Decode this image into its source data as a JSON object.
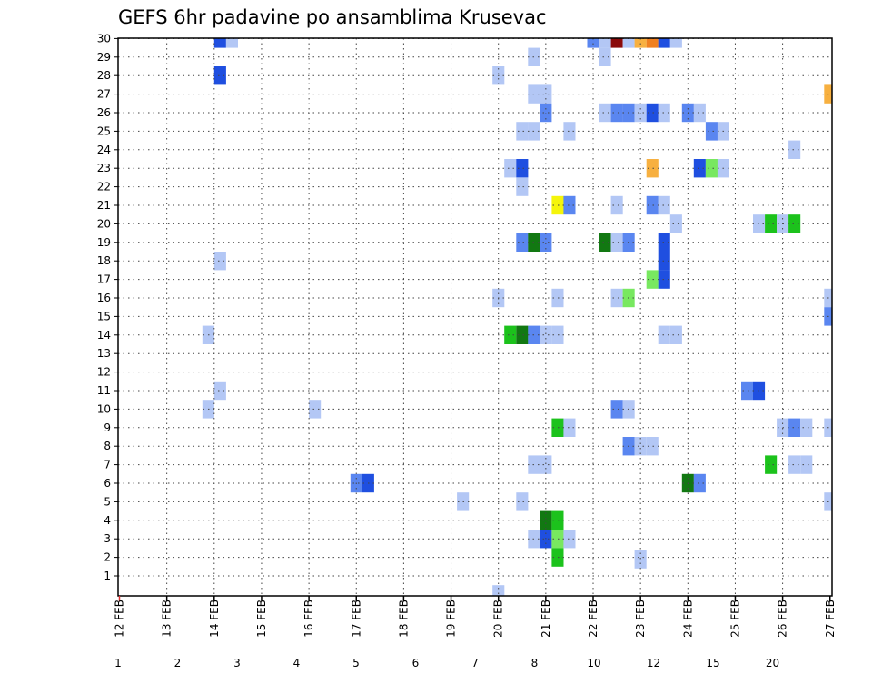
{
  "chart_data": {
    "type": "heatmap",
    "title": "GEFS 6hr padavine po ansamblima Krusevac",
    "x_tick_labels": [
      "12 FEB",
      "13 FEB",
      "14 FEB",
      "15 FEB",
      "16 FEB",
      "17 FEB",
      "18 FEB",
      "19 FEB",
      "20 FEB",
      "21 FEB",
      "22 FEB",
      "23 FEB",
      "24 FEB",
      "25 FEB",
      "26 FEB",
      "27 FEB"
    ],
    "y_tick_labels": [
      "1",
      "2",
      "3",
      "4",
      "5",
      "6",
      "7",
      "8",
      "9",
      "10",
      "11",
      "12",
      "13",
      "14",
      "15",
      "16",
      "17",
      "18",
      "19",
      "20",
      "21",
      "22",
      "23",
      "24",
      "25",
      "26",
      "27",
      "28",
      "29",
      "30"
    ],
    "xlim": [
      0,
      60
    ],
    "ylim": [
      0,
      30
    ],
    "x_unit": "6-hour step since 12 FEB 00Z",
    "grid": true,
    "legend_labels": [
      "1",
      "2",
      "3",
      "4",
      "5",
      "6",
      "7",
      "8",
      "10",
      "12",
      "15",
      "20"
    ],
    "legend_colors": [
      "#b3c7f5",
      "#5a86f0",
      "#1f4fe0",
      "#1a38d0",
      "#78e860",
      "#1cc21c",
      "#127812",
      "#f5f50a",
      "#f7b040",
      "#f08020",
      "#d42a2a",
      "#8a0a0a"
    ],
    "cells": [
      {
        "x": 8.5,
        "y": 30,
        "value": 3
      },
      {
        "x": 9.5,
        "y": 30,
        "value": 1
      },
      {
        "x": 40,
        "y": 30,
        "value": 2
      },
      {
        "x": 41,
        "y": 30,
        "value": 1
      },
      {
        "x": 42,
        "y": 30,
        "value": 20
      },
      {
        "x": 43,
        "y": 30,
        "value": 1
      },
      {
        "x": 44,
        "y": 30,
        "value": 10
      },
      {
        "x": 45,
        "y": 30,
        "value": 12
      },
      {
        "x": 46,
        "y": 30,
        "value": 3
      },
      {
        "x": 47,
        "y": 30,
        "value": 1
      },
      {
        "x": 35,
        "y": 29,
        "value": 1
      },
      {
        "x": 41,
        "y": 29,
        "value": 1
      },
      {
        "x": 8.5,
        "y": 28,
        "value": 3
      },
      {
        "x": 32,
        "y": 28,
        "value": 1
      },
      {
        "x": 35,
        "y": 27,
        "value": 1
      },
      {
        "x": 36,
        "y": 27,
        "value": 1
      },
      {
        "x": 60,
        "y": 27,
        "value": 10
      },
      {
        "x": 36,
        "y": 26,
        "value": 2
      },
      {
        "x": 41,
        "y": 26,
        "value": 1
      },
      {
        "x": 42,
        "y": 26,
        "value": 2
      },
      {
        "x": 43,
        "y": 26,
        "value": 2
      },
      {
        "x": 44,
        "y": 26,
        "value": 1
      },
      {
        "x": 45,
        "y": 26,
        "value": 3
      },
      {
        "x": 46,
        "y": 26,
        "value": 1
      },
      {
        "x": 48,
        "y": 26,
        "value": 2
      },
      {
        "x": 49,
        "y": 26,
        "value": 1
      },
      {
        "x": 34,
        "y": 25,
        "value": 1
      },
      {
        "x": 35,
        "y": 25,
        "value": 1
      },
      {
        "x": 38,
        "y": 25,
        "value": 1
      },
      {
        "x": 50,
        "y": 25,
        "value": 2
      },
      {
        "x": 51,
        "y": 25,
        "value": 1
      },
      {
        "x": 57,
        "y": 24,
        "value": 1
      },
      {
        "x": 33,
        "y": 23,
        "value": 1
      },
      {
        "x": 34,
        "y": 23,
        "value": 3
      },
      {
        "x": 45,
        "y": 23,
        "value": 10
      },
      {
        "x": 49,
        "y": 23,
        "value": 3
      },
      {
        "x": 50,
        "y": 23,
        "value": 5
      },
      {
        "x": 51,
        "y": 23,
        "value": 1
      },
      {
        "x": 34,
        "y": 22,
        "value": 1
      },
      {
        "x": 37,
        "y": 21,
        "value": 8
      },
      {
        "x": 38,
        "y": 21,
        "value": 2
      },
      {
        "x": 42,
        "y": 21,
        "value": 1
      },
      {
        "x": 45,
        "y": 21,
        "value": 2
      },
      {
        "x": 46,
        "y": 21,
        "value": 1
      },
      {
        "x": 47,
        "y": 20,
        "value": 1
      },
      {
        "x": 54,
        "y": 20,
        "value": 1
      },
      {
        "x": 55,
        "y": 20,
        "value": 6
      },
      {
        "x": 56,
        "y": 20,
        "value": 1
      },
      {
        "x": 57,
        "y": 20,
        "value": 6
      },
      {
        "x": 34,
        "y": 19,
        "value": 2
      },
      {
        "x": 35,
        "y": 19,
        "value": 7
      },
      {
        "x": 36,
        "y": 19,
        "value": 2
      },
      {
        "x": 41,
        "y": 19,
        "value": 7
      },
      {
        "x": 42,
        "y": 19,
        "value": 1
      },
      {
        "x": 43,
        "y": 19,
        "value": 2
      },
      {
        "x": 46,
        "y": 19,
        "value": 3
      },
      {
        "x": 8.5,
        "y": 18,
        "value": 1
      },
      {
        "x": 46,
        "y": 18,
        "value": 3
      },
      {
        "x": 45,
        "y": 17,
        "value": 5
      },
      {
        "x": 46,
        "y": 17,
        "value": 3
      },
      {
        "x": 32,
        "y": 16,
        "value": 1
      },
      {
        "x": 37,
        "y": 16,
        "value": 1
      },
      {
        "x": 42,
        "y": 16,
        "value": 1
      },
      {
        "x": 43,
        "y": 16,
        "value": 5
      },
      {
        "x": 60,
        "y": 16,
        "value": 1
      },
      {
        "x": 60,
        "y": 15,
        "value": 2
      },
      {
        "x": 7.5,
        "y": 14,
        "value": 1
      },
      {
        "x": 33,
        "y": 14,
        "value": 6
      },
      {
        "x": 34,
        "y": 14,
        "value": 7
      },
      {
        "x": 35,
        "y": 14,
        "value": 2
      },
      {
        "x": 36,
        "y": 14,
        "value": 1
      },
      {
        "x": 37,
        "y": 14,
        "value": 1
      },
      {
        "x": 46,
        "y": 14,
        "value": 1
      },
      {
        "x": 47,
        "y": 14,
        "value": 1
      },
      {
        "x": 8.5,
        "y": 11,
        "value": 1
      },
      {
        "x": 53,
        "y": 11,
        "value": 2
      },
      {
        "x": 54,
        "y": 11,
        "value": 3
      },
      {
        "x": 7.5,
        "y": 10,
        "value": 1
      },
      {
        "x": 16.5,
        "y": 10,
        "value": 1
      },
      {
        "x": 42,
        "y": 10,
        "value": 2
      },
      {
        "x": 43,
        "y": 10,
        "value": 1
      },
      {
        "x": 37,
        "y": 9,
        "value": 6
      },
      {
        "x": 38,
        "y": 9,
        "value": 1
      },
      {
        "x": 56,
        "y": 9,
        "value": 1
      },
      {
        "x": 57,
        "y": 9,
        "value": 2
      },
      {
        "x": 58,
        "y": 9,
        "value": 1
      },
      {
        "x": 60,
        "y": 9,
        "value": 1
      },
      {
        "x": 43,
        "y": 8,
        "value": 2
      },
      {
        "x": 44,
        "y": 8,
        "value": 1
      },
      {
        "x": 45,
        "y": 8,
        "value": 1
      },
      {
        "x": 35,
        "y": 7,
        "value": 1
      },
      {
        "x": 36,
        "y": 7,
        "value": 1
      },
      {
        "x": 55,
        "y": 7,
        "value": 6
      },
      {
        "x": 57,
        "y": 7,
        "value": 1
      },
      {
        "x": 58,
        "y": 7,
        "value": 1
      },
      {
        "x": 20,
        "y": 6,
        "value": 2
      },
      {
        "x": 21,
        "y": 6,
        "value": 3
      },
      {
        "x": 48,
        "y": 6,
        "value": 7
      },
      {
        "x": 49,
        "y": 6,
        "value": 2
      },
      {
        "x": 29,
        "y": 5,
        "value": 1
      },
      {
        "x": 34,
        "y": 5,
        "value": 1
      },
      {
        "x": 60,
        "y": 5,
        "value": 1
      },
      {
        "x": 36,
        "y": 4,
        "value": 7
      },
      {
        "x": 37,
        "y": 4,
        "value": 6
      },
      {
        "x": 35,
        "y": 3,
        "value": 1
      },
      {
        "x": 36,
        "y": 3,
        "value": 3
      },
      {
        "x": 37,
        "y": 3,
        "value": 5
      },
      {
        "x": 38,
        "y": 3,
        "value": 1
      },
      {
        "x": 37,
        "y": 2,
        "value": 6
      },
      {
        "x": 44,
        "y": 1.9,
        "value": 1
      },
      {
        "x": 32,
        "y": 0,
        "value": 1
      }
    ]
  }
}
